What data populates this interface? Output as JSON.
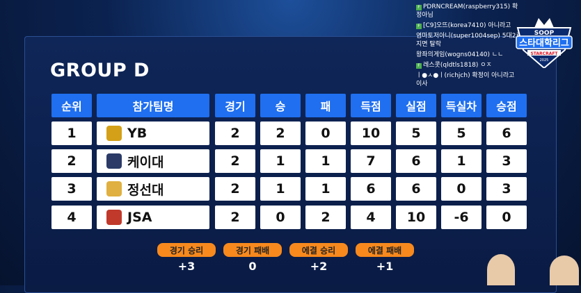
{
  "title": "GROUP D",
  "headers": [
    "순위",
    "참가팀명",
    "경기",
    "승",
    "패",
    "득점",
    "실점",
    "득실차",
    "승점"
  ],
  "rows": [
    {
      "rank": "1",
      "team": "YB",
      "games": "2",
      "win": "2",
      "loss": "0",
      "scored": "10",
      "conceded": "5",
      "diff": "5",
      "points": "6",
      "logo_color": "#d4a017"
    },
    {
      "rank": "2",
      "team": "케이대",
      "games": "2",
      "win": "1",
      "loss": "1",
      "scored": "7",
      "conceded": "6",
      "diff": "1",
      "points": "3",
      "logo_color": "#2b3a67"
    },
    {
      "rank": "3",
      "team": "정선대",
      "games": "2",
      "win": "1",
      "loss": "1",
      "scored": "6",
      "conceded": "6",
      "diff": "0",
      "points": "3",
      "logo_color": "#e0b040"
    },
    {
      "rank": "4",
      "team": "JSA",
      "games": "2",
      "win": "0",
      "loss": "2",
      "scored": "4",
      "conceded": "10",
      "diff": "-6",
      "points": "0",
      "logo_color": "#c0392b"
    }
  ],
  "legend": [
    {
      "label": "경기 승리",
      "value": "+3"
    },
    {
      "label": "경기 패배",
      "value": "0"
    },
    {
      "label": "에결 승리",
      "value": "+2"
    },
    {
      "label": "에결 패배",
      "value": "+1"
    }
  ],
  "chat": [
    {
      "badge": "F",
      "text": "PDRNCREAM(raspberry315) 확정아님"
    },
    {
      "badge": "F",
      "text": "[C9]오뜨(korea7410) 아니라고"
    },
    {
      "badge": "",
      "text": "염마토저아니(super1004sep) 5대2로 지면 탈락"
    },
    {
      "badge": "",
      "text": "왕좌의게임(wogns04140) ㄴㄴ"
    },
    {
      "badge": "F",
      "text": "레스콧(qldtls1818) ㅇㅈ"
    },
    {
      "badge": "",
      "text": "ㅣ●ㅅ●ㅣ(richjch) 확정이 아니라고 이사"
    }
  ],
  "brand": {
    "top": "SOOP",
    "main": "스타대학리그",
    "sub": "STARCRAFT",
    "year": "2025"
  },
  "colors": {
    "header": "#1f6ff0",
    "pill": "#f7891d",
    "background": "#0a1b44"
  }
}
